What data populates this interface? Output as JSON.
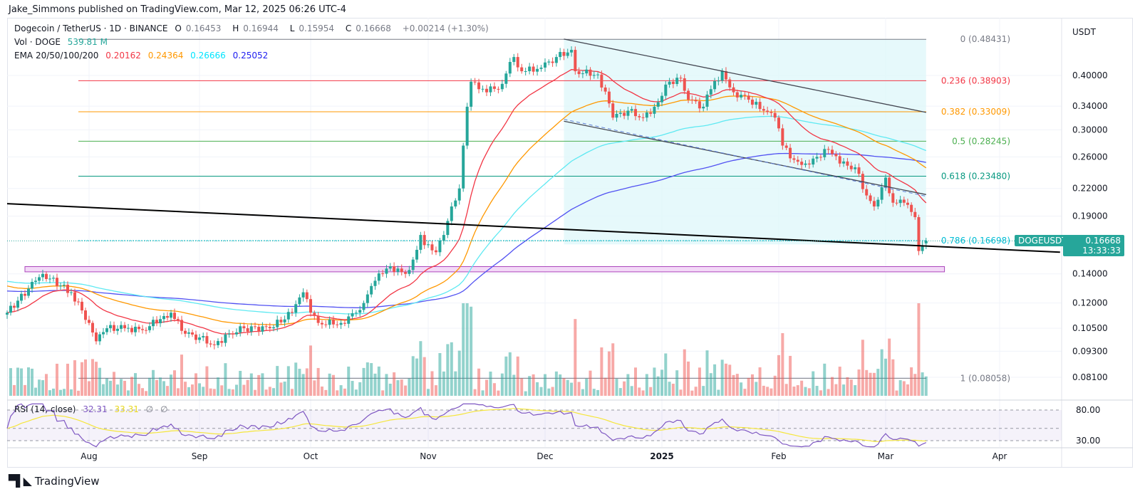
{
  "attribution": "Jake_Simmons published on TradingView.com, Mar 12, 2025 06:26 UTC-4",
  "legend": {
    "symbol": "Dogecoin / TetherUS · 1D · BINANCE",
    "o_label": "O",
    "o": "0.16453",
    "h_label": "H",
    "h": "0.16944",
    "l_label": "L",
    "l": "0.15954",
    "c_label": "C",
    "c": "0.16668",
    "change": "+0.00214 (+1.30%)",
    "vol_label": "Vol · DOGE",
    "vol": "539.81 M",
    "ema_label": "EMA 20/50/100/200",
    "ema20": "0.20162",
    "ema50": "0.24364",
    "ema100": "0.26666",
    "ema200": "0.25052",
    "rsi_label": "RSI (14, close)",
    "rsi": "32.31",
    "rsi_ma": "33.31",
    "na1": "∅",
    "na2": "∅"
  },
  "price_axis": {
    "unit": "USDT",
    "ticks": [
      "0.40000",
      "0.34000",
      "0.30000",
      "0.26000",
      "0.22000",
      "0.19000",
      "0.14000",
      "0.12000",
      "0.10500",
      "0.09300",
      "0.08100"
    ]
  },
  "rsi_axis": {
    "ticks": [
      "80.00",
      "30.00"
    ]
  },
  "time_axis": {
    "ticks": [
      {
        "label": "Aug",
        "date": "2024-08-01"
      },
      {
        "label": "Sep",
        "date": "2024-09-01"
      },
      {
        "label": "Oct",
        "date": "2024-10-01"
      },
      {
        "label": "Nov",
        "date": "2024-11-01"
      },
      {
        "label": "Dec",
        "date": "2024-12-01"
      },
      {
        "label": "2025",
        "date": "2025-01-01"
      },
      {
        "label": "Feb",
        "date": "2025-02-01"
      },
      {
        "label": "Mar",
        "date": "2025-03-01"
      },
      {
        "label": "Apr",
        "date": "2025-04-01"
      }
    ]
  },
  "current": {
    "symbol_tag": "DOGEUSDT",
    "price": "0.16668",
    "countdown": "13:33:33"
  },
  "colors": {
    "up": "#26a69a",
    "down": "#ef5350",
    "ema20": "#f23645",
    "ema50": "#ff9800",
    "ema100": "#5ee9f2",
    "ema200": "#5151f2",
    "rsi": "#7e57c2",
    "rsi_ma": "#f5e63c"
  },
  "fib_levels": [
    {
      "text": "0 (0.48431)",
      "price": 0.48431,
      "color": "#787b86"
    },
    {
      "text": "0.236 (0.38903)",
      "price": 0.38903,
      "color": "#f23645"
    },
    {
      "text": "0.382 (0.33009)",
      "price": 0.33009,
      "color": "#ff9800"
    },
    {
      "text": "0.5 (0.28245)",
      "price": 0.28245,
      "color": "#4caf50"
    },
    {
      "text": "0.618 (0.23480)",
      "price": 0.2348,
      "color": "#089981"
    },
    {
      "text": "0.786 (0.16698)",
      "price": 0.16698,
      "color": "#00bcd4"
    },
    {
      "text": "1 (0.08058)",
      "price": 0.08058,
      "color": "#787b86"
    }
  ],
  "chart_data": {
    "type": "candlestick",
    "scale": "log",
    "ylim": [
      0.075,
      0.52
    ],
    "xlim": [
      "2024-07-08",
      "2025-04-18"
    ],
    "last_candle": {
      "date": "2025-03-12",
      "open": 0.16453,
      "high": 0.16944,
      "low": 0.15954,
      "close": 0.16668
    },
    "closes": [
      [
        "2024-07-09",
        0.114
      ],
      [
        "2024-07-17",
        0.135
      ],
      [
        "2024-07-19",
        0.14
      ],
      [
        "2024-07-27",
        0.127
      ],
      [
        "2024-08-01",
        0.108
      ],
      [
        "2024-08-03",
        0.098
      ],
      [
        "2024-08-06",
        0.105
      ],
      [
        "2024-08-11",
        0.105
      ],
      [
        "2024-08-16",
        0.104
      ],
      [
        "2024-08-22",
        0.112
      ],
      [
        "2024-08-24",
        0.114
      ],
      [
        "2024-08-28",
        0.102
      ],
      [
        "2024-09-01",
        0.1
      ],
      [
        "2024-09-05",
        0.096
      ],
      [
        "2024-09-09",
        0.102
      ],
      [
        "2024-09-13",
        0.105
      ],
      [
        "2024-09-20",
        0.105
      ],
      [
        "2024-09-26",
        0.114
      ],
      [
        "2024-09-29",
        0.127
      ],
      [
        "2024-10-01",
        0.114
      ],
      [
        "2024-10-03",
        0.108
      ],
      [
        "2024-10-09",
        0.108
      ],
      [
        "2024-10-13",
        0.114
      ],
      [
        "2024-10-15",
        0.12
      ],
      [
        "2024-10-18",
        0.135
      ],
      [
        "2024-10-21",
        0.144
      ],
      [
        "2024-10-24",
        0.144
      ],
      [
        "2024-10-26",
        0.14
      ],
      [
        "2024-10-28",
        0.151
      ],
      [
        "2024-10-30",
        0.172
      ],
      [
        "2024-10-31",
        0.163
      ],
      [
        "2024-11-03",
        0.157
      ],
      [
        "2024-11-05",
        0.172
      ],
      [
        "2024-11-07",
        0.2
      ],
      [
        "2024-11-09",
        0.22
      ],
      [
        "2024-11-10",
        0.276
      ],
      [
        "2024-11-11",
        0.339
      ],
      [
        "2024-11-12",
        0.387
      ],
      [
        "2024-11-14",
        0.372
      ],
      [
        "2024-11-19",
        0.372
      ],
      [
        "2024-11-23",
        0.441
      ],
      [
        "2024-11-25",
        0.409
      ],
      [
        "2024-11-30",
        0.417
      ],
      [
        "2024-12-04",
        0.441
      ],
      [
        "2024-12-08",
        0.458
      ],
      [
        "2024-12-09",
        0.409
      ],
      [
        "2024-12-15",
        0.402
      ],
      [
        "2024-12-18",
        0.345
      ],
      [
        "2024-12-19",
        0.32
      ],
      [
        "2024-12-23",
        0.332
      ],
      [
        "2024-12-27",
        0.32
      ],
      [
        "2024-12-30",
        0.339
      ],
      [
        "2025-01-03",
        0.387
      ],
      [
        "2025-01-06",
        0.394
      ],
      [
        "2025-01-08",
        0.352
      ],
      [
        "2025-01-12",
        0.339
      ],
      [
        "2025-01-14",
        0.372
      ],
      [
        "2025-01-17",
        0.409
      ],
      [
        "2025-01-20",
        0.366
      ],
      [
        "2025-01-24",
        0.352
      ],
      [
        "2025-01-28",
        0.332
      ],
      [
        "2025-01-31",
        0.32
      ],
      [
        "2025-02-02",
        0.276
      ],
      [
        "2025-02-05",
        0.256
      ],
      [
        "2025-02-08",
        0.251
      ],
      [
        "2025-02-11",
        0.26
      ],
      [
        "2025-02-14",
        0.27
      ],
      [
        "2025-02-17",
        0.251
      ],
      [
        "2025-02-21",
        0.246
      ],
      [
        "2025-02-24",
        0.212
      ],
      [
        "2025-02-26",
        0.2
      ],
      [
        "2025-03-01",
        0.233
      ],
      [
        "2025-03-03",
        0.204
      ],
      [
        "2025-03-06",
        0.204
      ],
      [
        "2025-03-09",
        0.189
      ],
      [
        "2025-03-10",
        0.158
      ],
      [
        "2025-03-12",
        0.16668
      ]
    ],
    "trendline": {
      "from": [
        "2024-07-09",
        0.203
      ],
      "to": [
        "2025-04-17",
        0.157
      ],
      "color": "#000000"
    },
    "channel": {
      "upper": {
        "from": [
          "2024-12-06",
          0.485
        ],
        "to": [
          "2025-03-12",
          0.329
        ]
      },
      "lower": {
        "from": [
          "2024-12-06",
          0.314
        ],
        "to": [
          "2025-03-12",
          0.213
        ]
      },
      "fill": "#e0f7fa",
      "line": "#434651"
    },
    "support_zone": {
      "from": "2024-07-14",
      "to": "2025-03-17",
      "top": 0.1455,
      "bottom": 0.1415,
      "color": "#ce93d8"
    },
    "rsi_levels": [
      80,
      50,
      30
    ]
  },
  "brand": "TradingView"
}
